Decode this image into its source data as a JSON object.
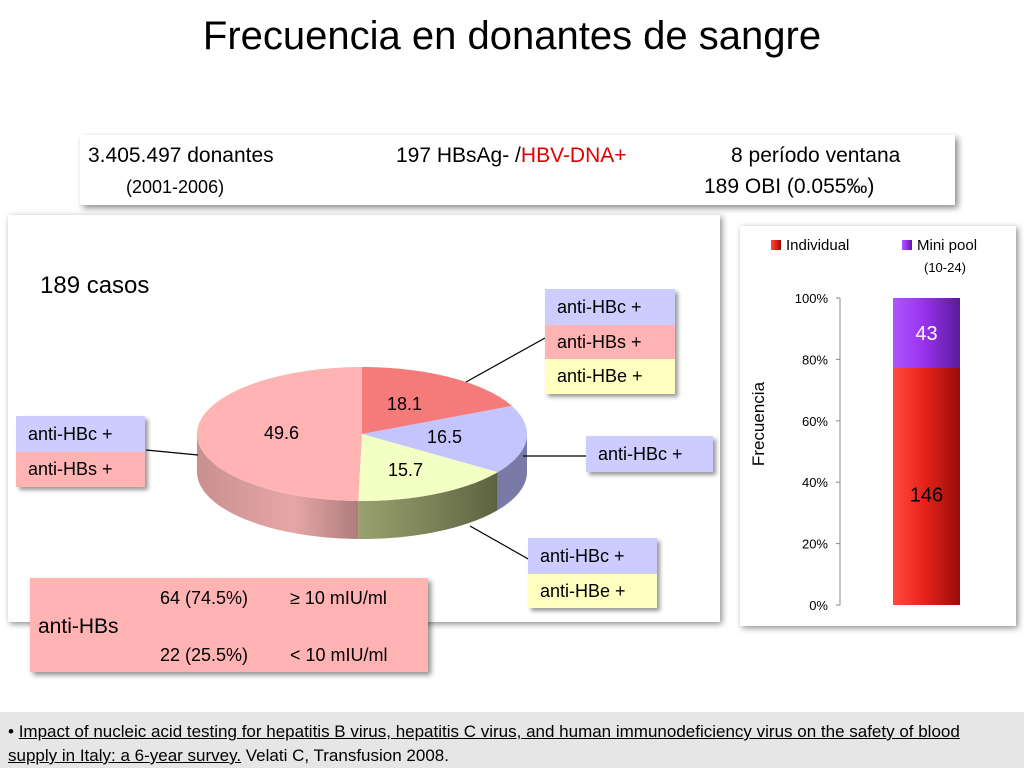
{
  "title": "Frecuencia en donantes de sangre",
  "info": {
    "donors": "3.405.497 donantes",
    "years": "(2001-2006)",
    "hbsag_prefix": "197 HBsAg- /",
    "hbv_dna": "HBV-DNA+",
    "window": "8 período ventana",
    "obi": "189 OBI (0.055‰)"
  },
  "pie": {
    "cases_label": "189 casos",
    "callouts": {
      "top_right": [
        "anti-HBc +",
        "anti-HBs +",
        "anti-HBe +"
      ],
      "left": [
        "anti-HBc +",
        "anti-HBs +"
      ],
      "right": [
        "anti-HBc +"
      ],
      "bottom": [
        "anti-HBc +",
        "anti-HBe +"
      ]
    }
  },
  "anti_hbs_box": {
    "label": "anti-HBs",
    "row1_count": "64 (74.5%)",
    "row1_cond": "≥ 10 mIU/ml",
    "row2_count": "22 (25.5%)",
    "row2_cond": "< 10 mIU/ml"
  },
  "footer": {
    "bullet": "•",
    "reference_link": "Impact of nucleic acid testing for hepatitis B virus, hepatitis C virus, and human immunodeficiency virus on the safety of blood supply in Italy: a 6-year survey.",
    "citation": " Velati C, Transfusion 2008."
  },
  "colors": {
    "pie_pink": "#ffb3b3",
    "pie_red": "#f57a7a",
    "pie_lavender": "#c4c4ff",
    "pie_yellow": "#f4ffc4",
    "bar_red": "#e8241c",
    "bar_purple": "#9933ee"
  },
  "chart_data": [
    {
      "type": "pie",
      "slices": [
        {
          "label": "anti-HBc + / anti-HBs +",
          "value": 49.6,
          "color": "#ffb3b3"
        },
        {
          "label": "anti-HBc + / anti-HBs + / anti-HBe +",
          "value": 18.1,
          "color": "#f57a7a"
        },
        {
          "label": "anti-HBc +",
          "value": 16.5,
          "color": "#c4c4ff"
        },
        {
          "label": "anti-HBc + / anti-HBe +",
          "value": 15.7,
          "color": "#f4ffc4"
        }
      ]
    },
    {
      "type": "bar",
      "stacked": true,
      "ylabel": "Frecuencia",
      "ylim": [
        0,
        100
      ],
      "yticks": [
        "0%",
        "20%",
        "40%",
        "60%",
        "80%",
        "100%"
      ],
      "legend_position": "top",
      "series": [
        {
          "name": "Individual",
          "value": 146,
          "percent": 77.2,
          "color": "#e8241c"
        },
        {
          "name": "Mini pool",
          "subname": "(10-24)",
          "value": 43,
          "percent": 22.8,
          "color": "#9933ee"
        }
      ]
    }
  ]
}
